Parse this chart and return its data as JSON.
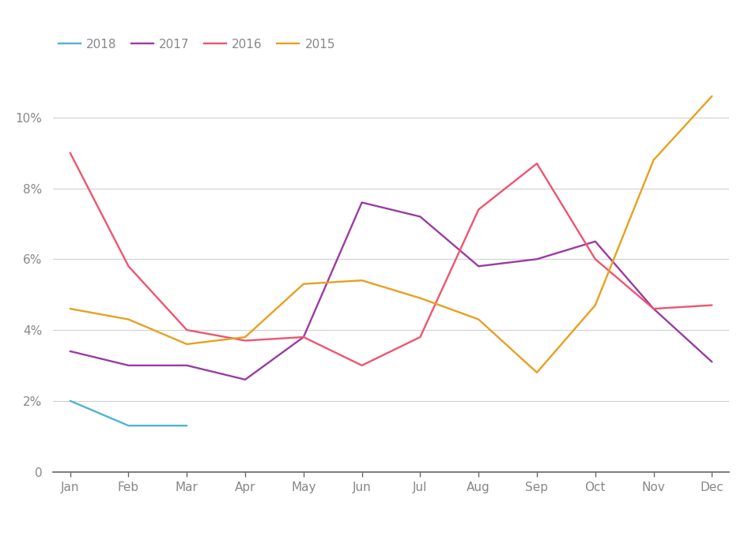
{
  "months": [
    "Jan",
    "Feb",
    "Mar",
    "Apr",
    "May",
    "Jun",
    "Jul",
    "Aug",
    "Sep",
    "Oct",
    "Nov",
    "Dec"
  ],
  "series": {
    "2018": [
      0.02,
      0.013,
      0.013,
      null,
      null,
      null,
      null,
      null,
      null,
      null,
      null,
      null
    ],
    "2017": [
      0.034,
      0.03,
      0.03,
      0.026,
      0.038,
      0.076,
      0.072,
      0.058,
      0.06,
      0.065,
      0.046,
      0.031
    ],
    "2016": [
      0.09,
      0.058,
      0.04,
      0.037,
      0.038,
      0.03,
      0.038,
      0.074,
      0.087,
      0.06,
      0.046,
      0.047
    ],
    "2015": [
      0.046,
      0.043,
      0.036,
      0.038,
      0.053,
      0.054,
      0.049,
      0.043,
      0.028,
      0.047,
      0.088,
      0.106
    ]
  },
  "colors": {
    "2018": "#4eb3d3",
    "2017": "#9b3ba4",
    "2016": "#f0546e",
    "2015": "#e8a020"
  },
  "ylim": [
    0,
    0.115
  ],
  "yticks": [
    0,
    0.02,
    0.04,
    0.06,
    0.08,
    0.1
  ],
  "ytick_labels": [
    "0",
    "2%",
    "4%",
    "6%",
    "8%",
    "10%"
  ],
  "legend_order": [
    "2018",
    "2017",
    "2016",
    "2015"
  ],
  "background_color": "#ffffff",
  "grid_color": "#d0d0d0",
  "line_width": 1.7,
  "font_color": "#888888",
  "font_size": 11,
  "axis_color": "#666666"
}
